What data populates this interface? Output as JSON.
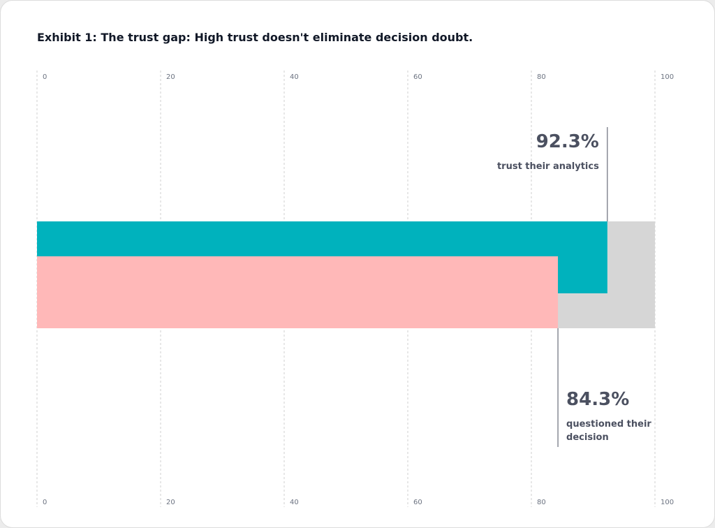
{
  "title": "Exhibit 1: The trust gap: High trust doesn't eliminate decision doubt.",
  "chart_data": {
    "type": "bar",
    "orientation": "horizontal",
    "title": "Exhibit 1: The trust gap: High trust doesn't eliminate decision doubt.",
    "xlim": [
      0,
      100
    ],
    "x_ticks": [
      "0",
      "20",
      "40",
      "60",
      "80",
      "100"
    ],
    "grid": true,
    "background_bar_value": 100,
    "series": [
      {
        "value": 92.3,
        "value_label": "92.3%",
        "caption": [
          "trust their analytics"
        ],
        "color": "#00b2bd"
      },
      {
        "value": 84.3,
        "value_label": "84.3%",
        "caption": [
          "questioned their",
          "decision"
        ],
        "color": "#ffb8b8"
      }
    ],
    "background_color": "#d6d6d6"
  }
}
